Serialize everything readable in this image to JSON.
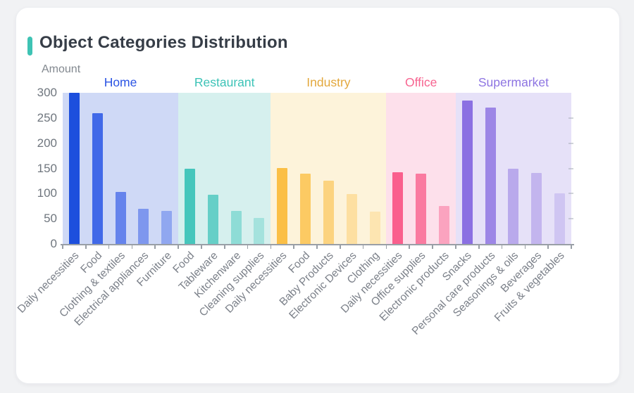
{
  "header": {
    "title": "Object Categories Distribution",
    "accent_color": "#3ec3b4"
  },
  "colors": {
    "page_bg": "#f1f2f4",
    "card_bg": "#ffffff",
    "title_text": "#363d47",
    "y_tick_text": "#6f767e",
    "x_tick_text": "#7b8089",
    "axis": "#999fa6"
  },
  "chart_data": {
    "type": "bar",
    "title": "Object Categories Distribution",
    "xlabel": "",
    "ylabel": "Amount",
    "ylim": [
      0,
      300
    ],
    "y_ticks": [
      0,
      50,
      100,
      150,
      200,
      250,
      300
    ],
    "grid": false,
    "legend_position": "group labels above colored bands",
    "groups": [
      {
        "name": "Home",
        "label_color": "#2b54e4",
        "band_color": "#cfd9f6",
        "bar_colors": [
          "#1d4fdd",
          "#4169e8",
          "#6583ec",
          "#7e97ee",
          "#90a7f0"
        ],
        "categories": [
          "Daily necessities",
          "Food",
          "Clothing & textiles",
          "Electrical appliances",
          "Furniture"
        ],
        "values": [
          300,
          259,
          103,
          70,
          65
        ]
      },
      {
        "name": "Restaurant",
        "label_color": "#3cc3b7",
        "band_color": "#d6f0ee",
        "bar_colors": [
          "#46c6bc",
          "#66cfc7",
          "#8edcd6",
          "#a4e2dd"
        ],
        "categories": [
          "Food",
          "Tableware",
          "Kitchenware",
          "Cleaning supplies"
        ],
        "values": [
          149,
          97,
          65,
          51
        ]
      },
      {
        "name": "Industry",
        "label_color": "#e3a83d",
        "band_color": "#fdf3da",
        "bar_colors": [
          "#fbbf45",
          "#fcca63",
          "#fcd37f",
          "#fddfa1",
          "#fde5b1"
        ],
        "categories": [
          "Daily necessities",
          "Food",
          "Baby Products",
          "Electronic Devices",
          "Clothing"
        ],
        "values": [
          151,
          139,
          126,
          99,
          64
        ]
      },
      {
        "name": "Office",
        "label_color": "#f76490",
        "band_color": "#fde0eb",
        "bar_colors": [
          "#fa5f8d",
          "#fa7aa0",
          "#fba3bf"
        ],
        "categories": [
          "Daily necessities",
          "Office supplies",
          "Electronic products"
        ],
        "values": [
          143,
          139,
          76
        ]
      },
      {
        "name": "Supermarket",
        "label_color": "#8d74e2",
        "band_color": "#e6e1f8",
        "bar_colors": [
          "#8b70e2",
          "#9d86e6",
          "#b9a9ec",
          "#c3b5ee",
          "#cfc5f2"
        ],
        "categories": [
          "Snacks",
          "Personal care products",
          "Seasonings & oils",
          "Beverages",
          "Fruits & vegetables"
        ],
        "values": [
          284,
          271,
          149,
          141,
          100
        ]
      }
    ]
  }
}
